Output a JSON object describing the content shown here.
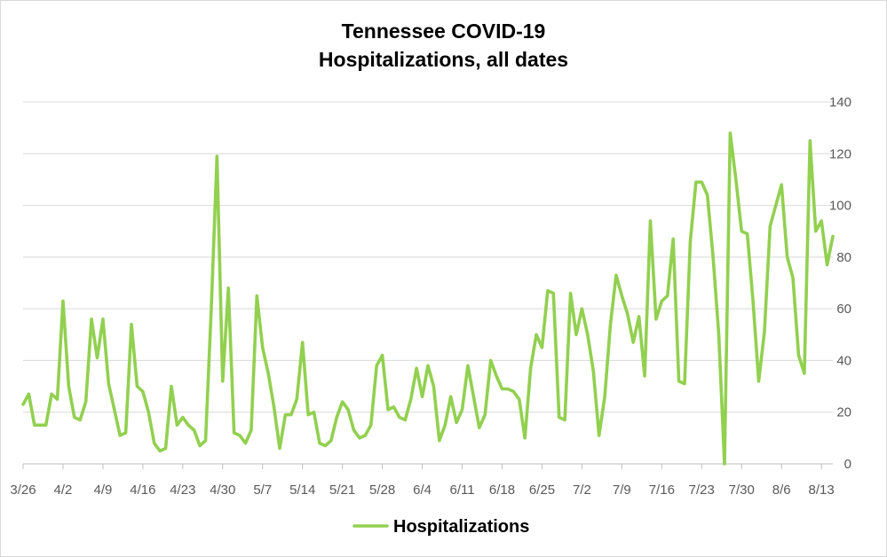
{
  "chart_data": {
    "type": "line",
    "title": "Tennessee COVID-19",
    "subtitle": "Hospitalizations, all dates",
    "xlabel": "",
    "ylabel": "",
    "ylim": [
      0,
      140
    ],
    "yticks": [
      0,
      20,
      40,
      60,
      80,
      100,
      120,
      140
    ],
    "xtick_labels": [
      "3/26",
      "4/2",
      "4/9",
      "4/16",
      "4/23",
      "4/30",
      "5/7",
      "5/14",
      "5/21",
      "5/28",
      "6/4",
      "6/11",
      "6/18",
      "6/25",
      "7/2",
      "7/9",
      "7/16",
      "7/23",
      "7/30",
      "8/6",
      "8/13"
    ],
    "x_start": "3/26",
    "grid": true,
    "legend_position": "bottom",
    "series_color": "#92d050",
    "series": [
      {
        "name": "Hospitalizations",
        "values": [
          23,
          27,
          15,
          15,
          15,
          27,
          25,
          63,
          30,
          18,
          17,
          24,
          56,
          41,
          56,
          31,
          21,
          11,
          12,
          54,
          30,
          28,
          20,
          8,
          5,
          6,
          30,
          15,
          18,
          15,
          13,
          7,
          9,
          60,
          119,
          32,
          68,
          12,
          11,
          8,
          13,
          65,
          45,
          35,
          22,
          6,
          19,
          19,
          25,
          47,
          19,
          20,
          8,
          7,
          9,
          18,
          24,
          21,
          13,
          10,
          11,
          15,
          38,
          42,
          21,
          22,
          18,
          17,
          25,
          37,
          26,
          38,
          30,
          9,
          15,
          26,
          16,
          21,
          38,
          26,
          14,
          19,
          40,
          34,
          29,
          29,
          28,
          25,
          10,
          37,
          50,
          45,
          67,
          66,
          18,
          17,
          66,
          50,
          60,
          50,
          36,
          11,
          26,
          54,
          73,
          65,
          58,
          47,
          57,
          34,
          94,
          56,
          63,
          65,
          87,
          32,
          31,
          86,
          109,
          109,
          104,
          80,
          50,
          0,
          128,
          110,
          90,
          89,
          63,
          32,
          51,
          92,
          100,
          108,
          80,
          72,
          42,
          35,
          125,
          90,
          94,
          77,
          88
        ]
      }
    ]
  }
}
